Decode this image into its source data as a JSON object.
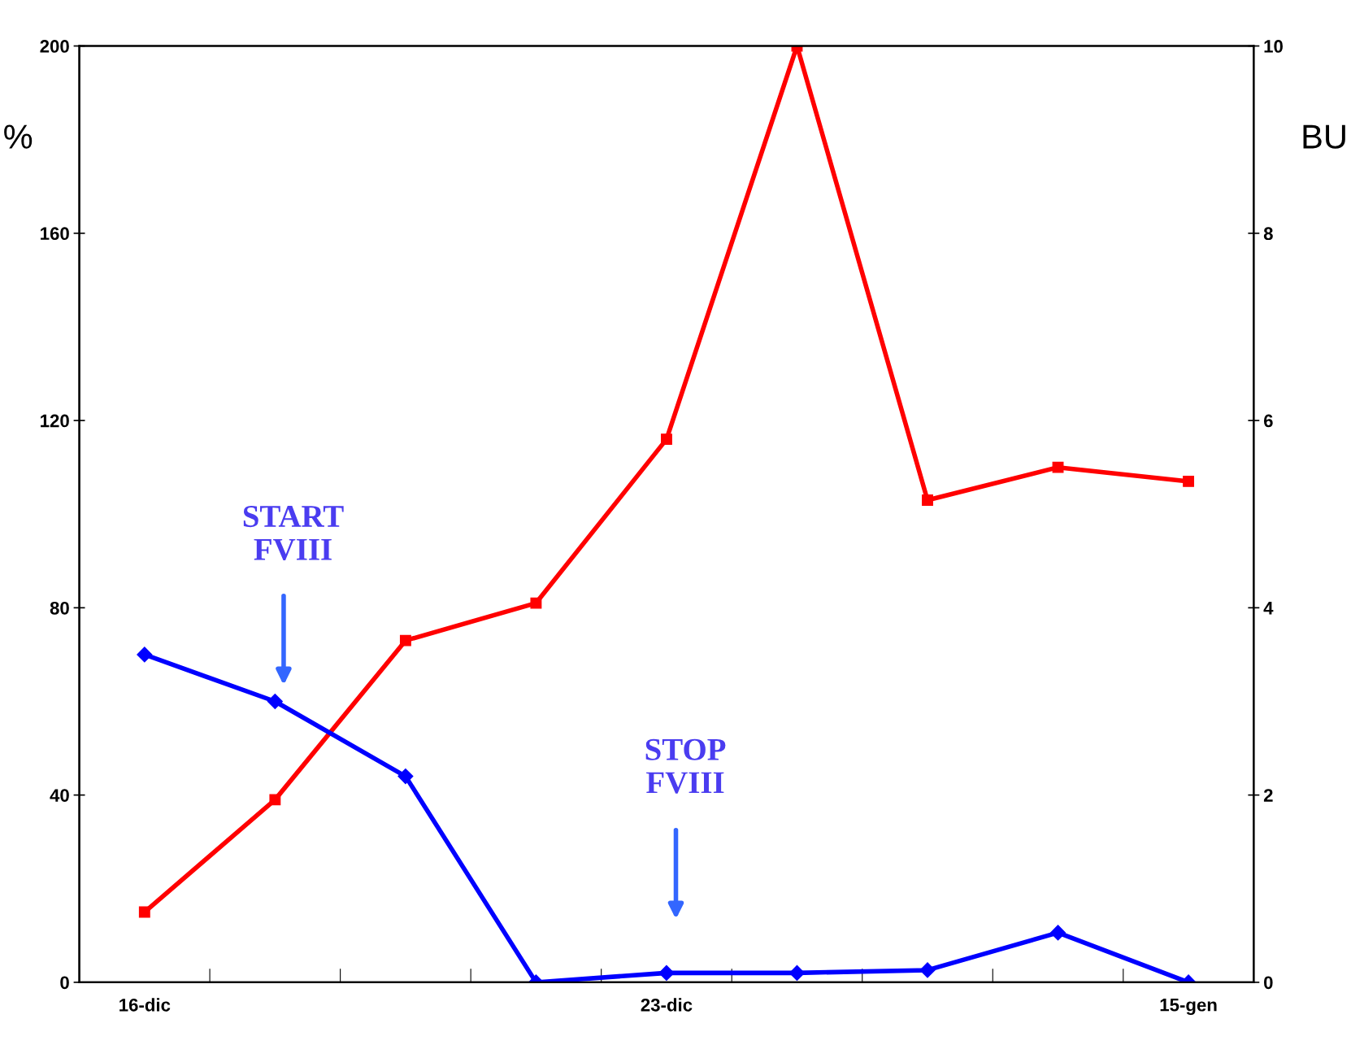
{
  "chart_data": {
    "type": "line",
    "categories": [
      "16-dic",
      null,
      null,
      null,
      "23-dic",
      null,
      null,
      null,
      "15-gen"
    ],
    "series": [
      {
        "color": "#ff0000",
        "marker": "square",
        "values": [
          15,
          39,
          73,
          81,
          116,
          200,
          103,
          110,
          107
        ]
      },
      {
        "color": "#0000ff",
        "marker": "diamond",
        "axis": "y2",
        "values": [
          3.5,
          3.0,
          2.2,
          0,
          0.1,
          0.1,
          0.13,
          0.53,
          0
        ]
      }
    ],
    "ylabel": "%",
    "y2label": "BU",
    "ylim": [
      0,
      200
    ],
    "yticks": [
      0,
      40,
      80,
      120,
      160,
      200
    ],
    "y2lim": [
      0,
      10
    ],
    "y2ticks": [
      0,
      2,
      4,
      6,
      8,
      10
    ],
    "annotations": [
      "START\nFVIII",
      "STOP\nFVIII"
    ],
    "grid": false,
    "legend": false,
    "line_style": "solid"
  }
}
